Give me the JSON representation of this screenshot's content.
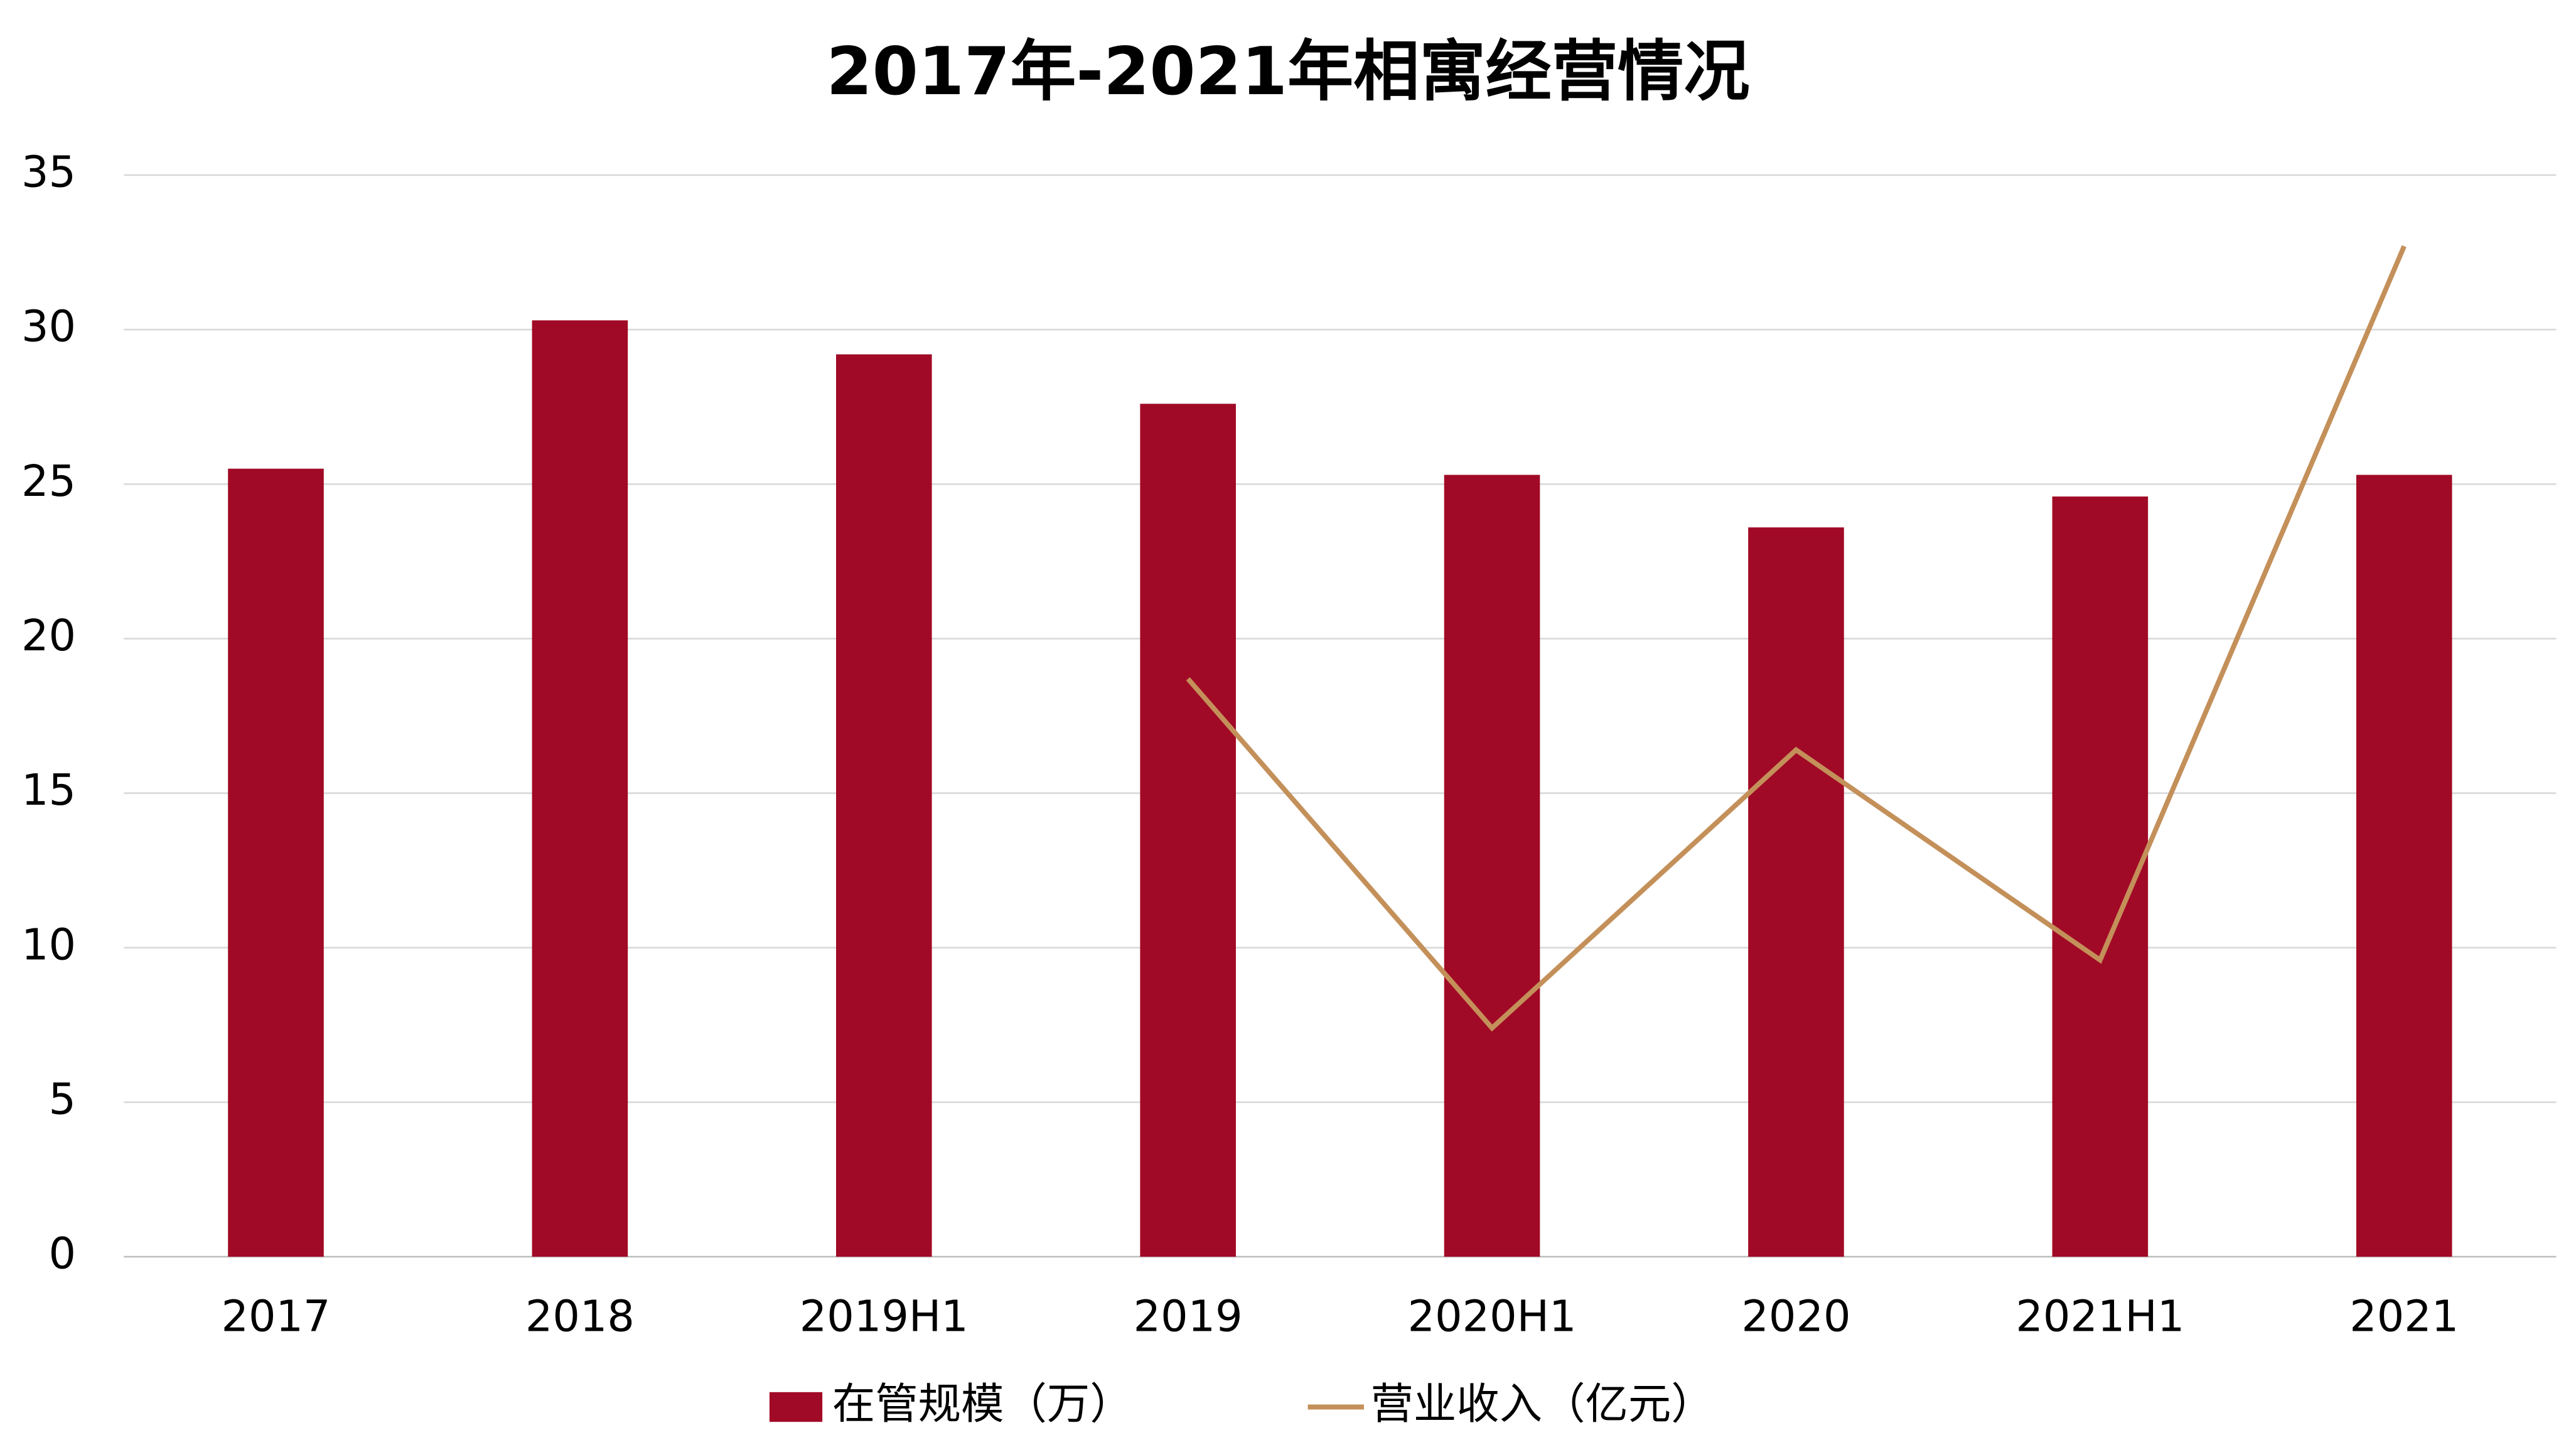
{
  "chart_data": {
    "type": "bar-line",
    "title": "2017年-2021年相寓经营情况",
    "categories": [
      "2017",
      "2018",
      "2019H1",
      "2019",
      "2020H1",
      "2020",
      "2021H1",
      "2021"
    ],
    "series": [
      {
        "name": "在管规模（万）",
        "type": "bar",
        "color": "#a10a26",
        "values": [
          25.5,
          30.3,
          29.2,
          27.6,
          25.3,
          23.6,
          24.6,
          25.3
        ]
      },
      {
        "name": "营业收入（亿元）",
        "type": "line",
        "color": "#c4905a",
        "values": [
          null,
          null,
          null,
          18.7,
          7.4,
          16.4,
          9.6,
          32.7
        ]
      }
    ],
    "ylim": [
      0,
      35
    ],
    "yticks": [
      0,
      5,
      10,
      15,
      20,
      25,
      30,
      35
    ],
    "grid": true,
    "legend": "bottom"
  }
}
